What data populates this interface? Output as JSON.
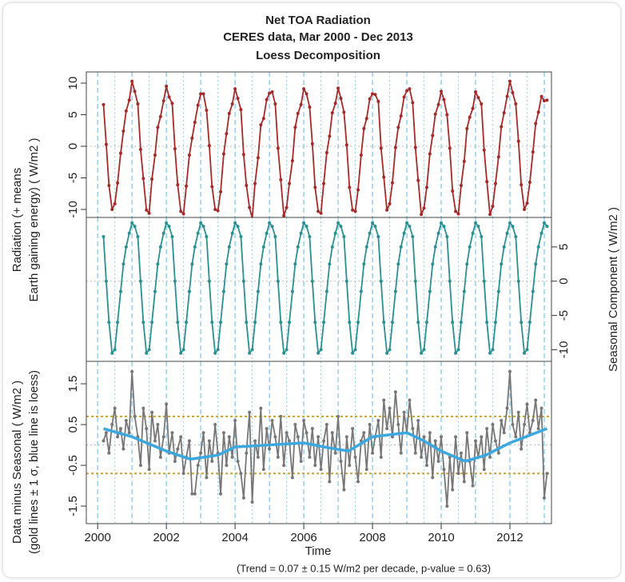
{
  "chart_data": {
    "type": "line",
    "title": "Net TOA Radiation",
    "subtitle": "CERES data, Mar 2000 - Dec 2013",
    "subtitle2": "Loess Decomposition",
    "xlabel": "Time",
    "footnote": "(Trend = 0.07 ± 0.15 W/m2 per decade, p-value = 0.63)",
    "xlim": [
      1999.67,
      2013.21
    ],
    "xticks": [
      2000,
      2002,
      2004,
      2006,
      2008,
      2010,
      2012
    ],
    "x_grid": [
      2000,
      2001,
      2002,
      2003,
      2004,
      2005,
      2006,
      2007,
      2008,
      2009,
      2010,
      2011,
      2012,
      2013
    ],
    "x": [
      2000.17,
      2000.25,
      2000.33,
      2000.42,
      2000.5,
      2000.58,
      2000.67,
      2000.75,
      2000.83,
      2000.92,
      2001,
      2001.08,
      2001.17,
      2001.25,
      2001.33,
      2001.42,
      2001.5,
      2001.58,
      2001.67,
      2001.75,
      2001.83,
      2001.92,
      2002,
      2002.08,
      2002.17,
      2002.25,
      2002.33,
      2002.42,
      2002.5,
      2002.58,
      2002.67,
      2002.75,
      2002.83,
      2002.92,
      2003,
      2003.08,
      2003.17,
      2003.25,
      2003.33,
      2003.42,
      2003.5,
      2003.58,
      2003.67,
      2003.75,
      2003.83,
      2003.92,
      2004,
      2004.08,
      2004.17,
      2004.25,
      2004.33,
      2004.42,
      2004.5,
      2004.58,
      2004.67,
      2004.75,
      2004.83,
      2004.92,
      2005,
      2005.08,
      2005.17,
      2005.25,
      2005.33,
      2005.42,
      2005.5,
      2005.58,
      2005.67,
      2005.75,
      2005.83,
      2005.92,
      2006,
      2006.08,
      2006.17,
      2006.25,
      2006.33,
      2006.42,
      2006.5,
      2006.58,
      2006.67,
      2006.75,
      2006.83,
      2006.92,
      2007,
      2007.08,
      2007.17,
      2007.25,
      2007.33,
      2007.42,
      2007.5,
      2007.58,
      2007.67,
      2007.75,
      2007.83,
      2007.92,
      2008,
      2008.08,
      2008.17,
      2008.25,
      2008.33,
      2008.42,
      2008.5,
      2008.58,
      2008.67,
      2008.75,
      2008.83,
      2008.92,
      2009,
      2009.08,
      2009.17,
      2009.25,
      2009.33,
      2009.42,
      2009.5,
      2009.58,
      2009.67,
      2009.75,
      2009.83,
      2009.92,
      2010,
      2010.08,
      2010.17,
      2010.25,
      2010.33,
      2010.42,
      2010.5,
      2010.58,
      2010.67,
      2010.75,
      2010.83,
      2010.92,
      2011,
      2011.08,
      2011.17,
      2011.25,
      2011.33,
      2011.42,
      2011.5,
      2011.58,
      2011.67,
      2011.75,
      2011.83,
      2011.92,
      2012,
      2012.08,
      2012.17,
      2012.25,
      2012.33,
      2012.42,
      2012.5,
      2012.58,
      2012.67,
      2012.75,
      2012.83,
      2012.92,
      2013,
      2013.08
    ],
    "panels": [
      {
        "ylabel": "Radiation (+ means",
        "ylabel2": "Earth gaining energy) ( W/m2 )",
        "axis_side": "left",
        "ylim": [
          -11.27,
          11.77
        ],
        "yticks": [
          -10,
          -5,
          0,
          5,
          10
        ],
        "hline": 0,
        "series": [
          {
            "color": "#a52a2a",
            "values": [
              6.6,
              0.3,
              -6.2,
              -10.0,
              -9.1,
              -5.8,
              -1.1,
              2.4,
              5.6,
              7.3,
              10.3,
              8.7,
              6.7,
              -0.5,
              -5.1,
              -10.1,
              -10.6,
              -5.2,
              -1.4,
              3.0,
              4.7,
              7.2,
              9.5,
              7.8,
              6.8,
              -0.4,
              -6.1,
              -10.3,
              -10.7,
              -6.3,
              -1.4,
              1.3,
              3.8,
              6.5,
              8.3,
              8.3,
              5.7,
              0.1,
              -6.4,
              -10.0,
              -10.2,
              -7.2,
              -1.2,
              2.0,
              5.2,
              6.7,
              9.1,
              7.6,
              5.8,
              -1.3,
              -6.2,
              -9.7,
              -11.4,
              -5.9,
              -1.8,
              3.4,
              4.4,
              7.4,
              8.4,
              8.6,
              6.7,
              -0.3,
              -5.3,
              -11.0,
              -9.7,
              -5.9,
              -2.3,
              3.0,
              5.2,
              6.6,
              9.1,
              8.3,
              6.2,
              0.4,
              -6.5,
              -10.3,
              -10.6,
              -5.9,
              -1.0,
              1.6,
              5.3,
              6.8,
              9.2,
              7.6,
              5.4,
              0.2,
              -6.5,
              -10.1,
              -10.3,
              -6.9,
              -1.4,
              2.8,
              4.4,
              7.5,
              8.3,
              8.2,
              7.1,
              -0.3,
              -4.9,
              -10.1,
              -9.1,
              -5.8,
              -0.2,
              3.0,
              4.8,
              7.8,
              8.8,
              9.1,
              6.9,
              -0.2,
              -5.4,
              -10.8,
              -9.8,
              -6.5,
              -1.2,
              1.7,
              5.1,
              6.6,
              8.7,
              7.4,
              5.0,
              -0.3,
              -7.1,
              -10.3,
              -10.7,
              -6.2,
              -2.4,
              2.8,
              4.6,
              6.0,
              8.6,
              7.7,
              6.7,
              -0.6,
              -5.6,
              -10.8,
              -9.5,
              -5.9,
              -1.7,
              3.1,
              5.3,
              7.9,
              10.3,
              8.5,
              6.7,
              0.8,
              -6.1,
              -10.0,
              -9.0,
              -5.7,
              -0.9,
              3.6,
              5.4,
              7.9,
              7.2,
              7.3
            ]
          }
        ]
      },
      {
        "ylabel": "Seasonal Component ( W/m2 )",
        "axis_side": "right",
        "ylim": [
          -11.7,
          9.3
        ],
        "yticks": [
          -10,
          -5,
          0,
          5
        ],
        "hline": 0,
        "series": [
          {
            "color": "#2a9090",
            "values": [
              6.5,
              0,
              -6,
              -10.5,
              -10,
              -6,
              -1.5,
              2.5,
              5,
              7,
              8.5,
              8,
              6.5,
              0,
              -6,
              -10.5,
              -10,
              -6,
              -1.5,
              2.5,
              5,
              7,
              8.5,
              8,
              6.5,
              0,
              -6,
              -10.5,
              -10,
              -6,
              -1.5,
              2.5,
              5,
              7,
              8.5,
              8,
              6.5,
              0,
              -6,
              -10.5,
              -10,
              -6,
              -1.5,
              2.5,
              5,
              7,
              8.5,
              8,
              6.5,
              0,
              -6,
              -10.5,
              -10,
              -6,
              -1.5,
              2.5,
              5,
              7,
              8.5,
              8,
              6.5,
              0,
              -6,
              -10.5,
              -10,
              -6,
              -1.5,
              2.5,
              5,
              7,
              8.5,
              8,
              6.5,
              0,
              -6,
              -10.5,
              -10,
              -6,
              -1.5,
              2.5,
              5,
              7,
              8.5,
              8,
              6.5,
              0,
              -6,
              -10.5,
              -10,
              -6,
              -1.5,
              2.5,
              5,
              7,
              8.5,
              8,
              6.5,
              0,
              -6,
              -10.5,
              -10,
              -6,
              -1.5,
              2.5,
              5,
              7,
              8.5,
              8,
              6.5,
              0,
              -6,
              -10.5,
              -10,
              -6,
              -1.5,
              2.5,
              5,
              7,
              8.5,
              8,
              6.5,
              0,
              -6,
              -10.5,
              -10,
              -6,
              -1.5,
              2.5,
              5,
              7,
              8.5,
              8,
              6.5,
              0,
              -6,
              -10.5,
              -10,
              -6,
              -1.5,
              2.5,
              5,
              7,
              8.5,
              8,
              6.5,
              0,
              -6,
              -10.5,
              -10,
              -6,
              -1.5,
              2.5,
              5,
              7,
              8.5,
              8
            ]
          }
        ]
      },
      {
        "ylabel": "Data minus Seasonal ( W/m2 )",
        "ylabel2": "(gold lines ± 1 σ, blue line is loess)",
        "axis_side": "left",
        "ylim": [
          -1.93,
          2.05
        ],
        "yticks": [
          -1.5,
          -0.5,
          0.5,
          1.5
        ],
        "hline": 0,
        "gold_lines": [
          0.7,
          -0.7
        ],
        "gold_color": "#c8a040",
        "series": [
          {
            "color": "#777777",
            "values": [
              0.1,
              0.3,
              -0.2,
              0.5,
              0.9,
              0.2,
              0.4,
              -0.1,
              0.6,
              0.3,
              1.8,
              0.7,
              0.2,
              -0.5,
              0.9,
              0.4,
              -0.6,
              0.8,
              0.1,
              0.5,
              -0.3,
              0.2,
              1.0,
              -0.2,
              0.3,
              -0.4,
              -0.1,
              0.2,
              -0.7,
              -0.3,
              0.1,
              -1.2,
              -1.2,
              -0.5,
              -0.2,
              0.3,
              -0.8,
              0.1,
              -0.4,
              0.5,
              -0.2,
              -1.2,
              0.3,
              -0.5,
              0.2,
              -0.3,
              0.6,
              -0.4,
              -0.7,
              -1.3,
              -0.2,
              0.8,
              -1.4,
              0.1,
              -0.3,
              0.9,
              -0.6,
              0.4,
              -0.1,
              0.6,
              0.2,
              -0.3,
              0.7,
              -0.5,
              0.3,
              0.1,
              -0.8,
              0.5,
              0.2,
              -0.4,
              0.6,
              0.3,
              -0.3,
              0.4,
              -0.5,
              0.2,
              -0.6,
              0.1,
              0.5,
              -0.9,
              0.3,
              -0.2,
              0.7,
              -0.4,
              -1.1,
              0.2,
              -0.5,
              0.4,
              -0.3,
              -0.9,
              0.1,
              0.3,
              -0.6,
              0.5,
              -0.2,
              0.2,
              0.6,
              -0.3,
              1.1,
              0.4,
              0.9,
              0.2,
              1.3,
              0.5,
              -0.2,
              0.8,
              0.3,
              1.1,
              0.4,
              -0.2,
              0.6,
              -0.3,
              0.2,
              -0.5,
              0.3,
              -0.8,
              0.1,
              -0.4,
              0.2,
              -0.6,
              -1.5,
              -0.3,
              -1.1,
              0.2,
              -0.7,
              -0.2,
              -0.9,
              0.3,
              -0.4,
              -1.0,
              0.1,
              -0.3,
              0.2,
              -0.6,
              0.4,
              -0.3,
              0.5,
              0.1,
              -0.2,
              0.6,
              0.3,
              0.9,
              1.8,
              0.5,
              0.2,
              0.8,
              -0.1,
              0.5,
              1.0,
              0.3,
              0.6,
              1.1,
              0.4,
              0.9,
              -1.3,
              -0.7
            ]
          },
          {
            "color": "#3ba8e0",
            "smooth": true,
            "x": [
              2000.17,
              2001,
              2002,
              2002.7,
              2003.5,
              2004,
              2005,
              2006,
              2006.6,
              2007.3,
              2008,
              2009,
              2009.5,
              2010,
              2010.7,
              2011.3,
              2012,
              2013.08
            ],
            "values": [
              0.4,
              0.2,
              -0.15,
              -0.35,
              -0.25,
              -0.05,
              0,
              0.05,
              -0.05,
              -0.15,
              0.2,
              0.3,
              0.1,
              -0.15,
              -0.4,
              -0.25,
              0.05,
              0.4
            ]
          }
        ]
      }
    ]
  }
}
